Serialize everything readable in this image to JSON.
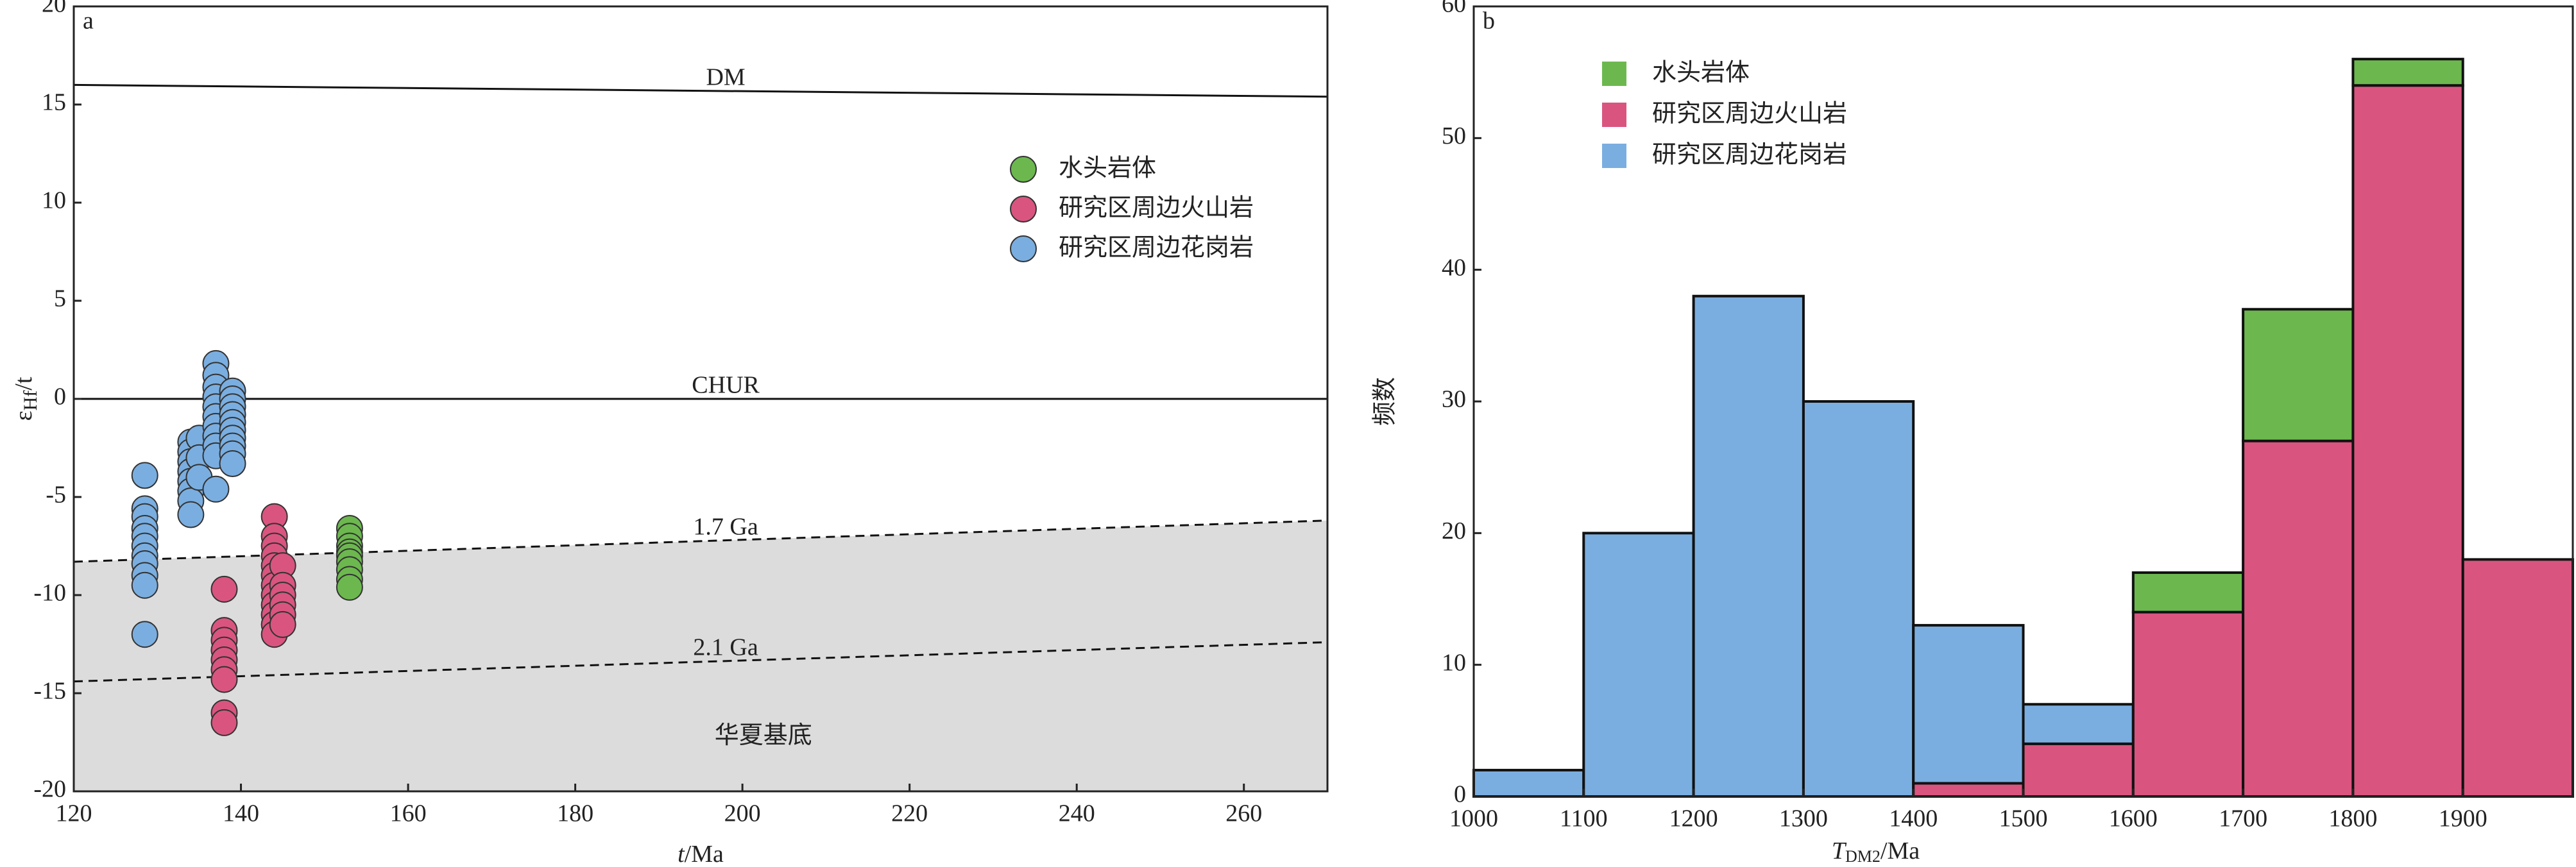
{
  "chart_data": [
    {
      "type": "scatter",
      "panel_label": "a",
      "xlabel": {
        "var": "t",
        "unit": "/Ma"
      },
      "ylabel": {
        "main": "ε",
        "sub": "Hf",
        "tail": "/t"
      },
      "xlim": [
        120,
        270
      ],
      "xticks": [
        120,
        140,
        160,
        180,
        200,
        220,
        240,
        260
      ],
      "ylim": [
        -20,
        20
      ],
      "yticks": [
        -20,
        -15,
        -10,
        -5,
        0,
        5,
        10,
        15,
        20
      ],
      "reference_lines": [
        {
          "label": "DM",
          "x": [
            120,
            270
          ],
          "y": [
            16,
            15.4
          ],
          "dash": false
        },
        {
          "label": "CHUR",
          "x": [
            120,
            270
          ],
          "y": [
            0,
            0
          ],
          "dash": false
        },
        {
          "label": "1.7 Ga",
          "x": [
            120,
            270
          ],
          "y": [
            -8.3,
            -6.2
          ],
          "dash": true
        },
        {
          "label": "2.1 Ga",
          "x": [
            120,
            270
          ],
          "y": [
            -14.4,
            -12.4
          ],
          "dash": true
        }
      ],
      "region_label": "华夏基底",
      "series": [
        {
          "name": "水头岩体",
          "color": "#6cb84f",
          "x": [
            153,
            153,
            153,
            153,
            153,
            153,
            153,
            153,
            153
          ],
          "y": [
            -6.6,
            -7.0,
            -7.5,
            -7.8,
            -8.0,
            -8.3,
            -8.7,
            -9.2,
            -9.6
          ]
        },
        {
          "name": "研究区周边火山岩",
          "color": "#d9557f",
          "x": [
            138,
            138,
            138,
            138,
            138,
            138,
            138,
            138,
            138,
            144,
            144,
            144,
            144,
            144,
            144,
            144,
            144,
            144,
            144,
            144,
            144,
            145,
            145,
            145,
            145,
            145,
            145
          ],
          "y": [
            -9.7,
            -11.8,
            -12.3,
            -12.8,
            -13.3,
            -13.8,
            -14.3,
            -16.0,
            -16.5,
            -6.0,
            -7.0,
            -7.5,
            -8.0,
            -8.5,
            -9.0,
            -9.5,
            -10.0,
            -10.5,
            -11.0,
            -11.5,
            -12.0,
            -8.5,
            -9.5,
            -10.0,
            -10.5,
            -11.0,
            -11.5
          ]
        },
        {
          "name": "研究区周边花岗岩",
          "color": "#7aaee0",
          "x": [
            128.5,
            128.5,
            128.5,
            128.5,
            128.5,
            128.5,
            128.5,
            128.5,
            128.5,
            128.5,
            128.5,
            134,
            134,
            134,
            134,
            134,
            134,
            134,
            134,
            135,
            135,
            135,
            137,
            137,
            137,
            137,
            137,
            137,
            137,
            137,
            137,
            137,
            137,
            139,
            139,
            139,
            139,
            139,
            139,
            139,
            139,
            139,
            139
          ],
          "y": [
            -3.9,
            -5.6,
            -6.0,
            -6.6,
            -7.0,
            -7.5,
            -8.0,
            -8.4,
            -9.0,
            -9.5,
            -12.0,
            -2.2,
            -2.7,
            -3.2,
            -3.7,
            -4.2,
            -4.7,
            -5.2,
            -5.9,
            -2.0,
            -3.0,
            -4.0,
            1.8,
            1.2,
            0.6,
            0.1,
            -0.4,
            -0.9,
            -1.4,
            -1.9,
            -2.4,
            -2.9,
            -4.6,
            0.4,
            0.0,
            -0.4,
            -0.8,
            -1.2,
            -1.6,
            -2.0,
            -2.4,
            -2.8,
            -3.3
          ]
        }
      ]
    },
    {
      "type": "histogram",
      "panel_label": "b",
      "xlabel": {
        "var": "T",
        "sub": "DM2",
        "unit": "/Ma"
      },
      "ylabel": "频数",
      "bins": [
        1000,
        1100,
        1200,
        1300,
        1400,
        1500,
        1600,
        1700,
        1800,
        1900,
        2000
      ],
      "xlim": [
        1000,
        2000
      ],
      "xticks": [
        1000,
        1100,
        1200,
        1300,
        1400,
        1500,
        1600,
        1700,
        1800,
        1900
      ],
      "ylim": [
        0,
        60
      ],
      "yticks": [
        0,
        10,
        20,
        30,
        40,
        50,
        60
      ],
      "stack_order": [
        1,
        0,
        2
      ],
      "series": [
        {
          "name": "水头岩体",
          "color": "#6cb84f",
          "values": [
            0,
            0,
            0,
            0,
            0,
            0,
            3,
            10,
            2,
            0
          ]
        },
        {
          "name": "研究区周边火山岩",
          "color": "#d9557f",
          "values": [
            0,
            0,
            0,
            0,
            1,
            4,
            14,
            27,
            54,
            18
          ]
        },
        {
          "name": "研究区周边花岗岩",
          "color": "#7aaee0",
          "values": [
            2,
            20,
            38,
            30,
            12,
            3,
            0,
            0,
            0,
            0
          ]
        }
      ]
    }
  ]
}
